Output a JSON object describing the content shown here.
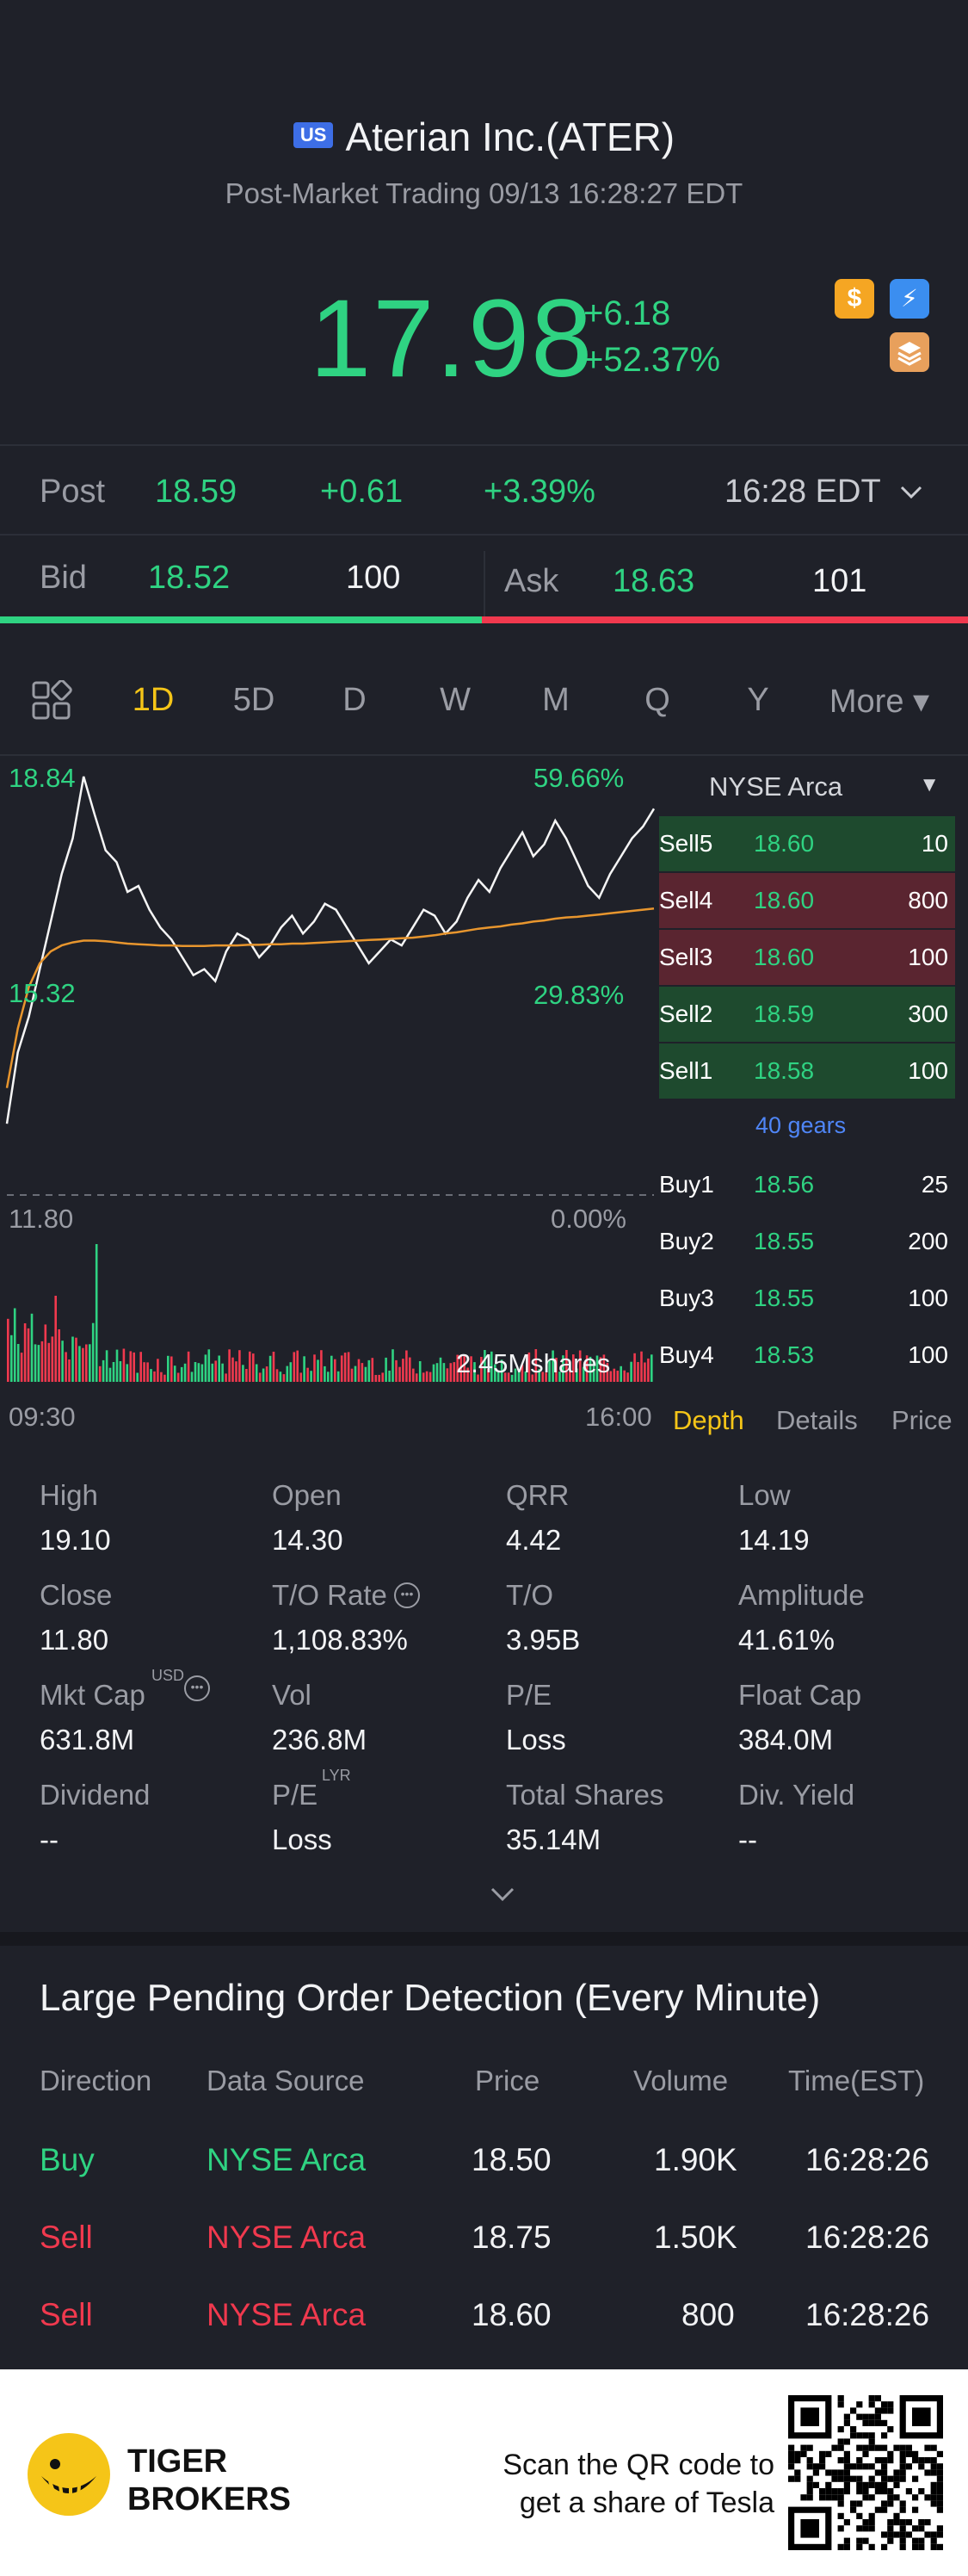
{
  "header": {
    "market_badge": "US",
    "title": "Aterian Inc.(ATER)",
    "subtitle": "Post-Market Trading 09/13 16:28:27 EDT",
    "price": "17.98",
    "change": "+6.18",
    "change_pct": "+52.37%",
    "icons": [
      "dollar-icon",
      "lightning-icon",
      "layers-icon"
    ]
  },
  "post": {
    "label": "Post",
    "price": "18.59",
    "change": "+0.61",
    "change_pct": "+3.39%",
    "time": "16:28 EDT"
  },
  "bidask": {
    "bid_label": "Bid",
    "bid_price": "18.52",
    "bid_qty": "100",
    "ask_label": "Ask",
    "ask_price": "18.63",
    "ask_qty": "101"
  },
  "tabs": [
    "1D",
    "5D",
    "D",
    "W",
    "M",
    "Q",
    "Y",
    "More ▾"
  ],
  "active_tab": "1D",
  "chart": {
    "high": "18.84",
    "high_pct": "59.66%",
    "mid": "15.32",
    "mid_pct": "29.83%",
    "low": "11.80",
    "low_pct": "0.00%",
    "volume": "2.45Mshares",
    "time_start": "09:30",
    "time_end": "16:00"
  },
  "orderbook": {
    "exchange": "NYSE Arca",
    "sells": [
      {
        "name": "Sell5",
        "price": "18.60",
        "qty": "10"
      },
      {
        "name": "Sell4",
        "price": "18.60",
        "qty": "800"
      },
      {
        "name": "Sell3",
        "price": "18.60",
        "qty": "100"
      },
      {
        "name": "Sell2",
        "price": "18.59",
        "qty": "300"
      },
      {
        "name": "Sell1",
        "price": "18.58",
        "qty": "100"
      }
    ],
    "gears": "40 gears",
    "buys": [
      {
        "name": "Buy1",
        "price": "18.56",
        "qty": "25"
      },
      {
        "name": "Buy2",
        "price": "18.55",
        "qty": "200"
      },
      {
        "name": "Buy3",
        "price": "18.55",
        "qty": "100"
      },
      {
        "name": "Buy4",
        "price": "18.53",
        "qty": "100"
      }
    ],
    "tabs": [
      "Depth",
      "Details",
      "Price"
    ]
  },
  "stats": [
    {
      "label": "High",
      "value": "19.10"
    },
    {
      "label": "Open",
      "value": "14.30"
    },
    {
      "label": "QRR",
      "value": "4.42"
    },
    {
      "label": "Low",
      "value": "14.19"
    },
    {
      "label": "Close",
      "value": "11.80"
    },
    {
      "label": "T/O Rate",
      "value": "1,108.83%"
    },
    {
      "label": "T/O",
      "value": "3.95B"
    },
    {
      "label": "Amplitude",
      "value": "41.61%"
    },
    {
      "label": "Mkt Cap",
      "value": "631.8M",
      "sup": "USD"
    },
    {
      "label": "Vol",
      "value": "236.8M"
    },
    {
      "label": "P/E",
      "value": "Loss"
    },
    {
      "label": "Float Cap",
      "value": "384.0M"
    },
    {
      "label": "Dividend",
      "value": "--"
    },
    {
      "label": "P/E",
      "value": "Loss",
      "sup": "LYR"
    },
    {
      "label": "Total Shares",
      "value": "35.14M"
    },
    {
      "label": "Div. Yield",
      "value": "--"
    }
  ],
  "large_pending": {
    "title": "Large Pending Order Detection (Every Minute)",
    "headers": [
      "Direction",
      "Data Source",
      "Price",
      "Volume",
      "Time(EST)"
    ],
    "rows": [
      {
        "direction": "Buy",
        "source": "NYSE Arca",
        "price": "18.50",
        "volume": "1.90K",
        "time": "16:28:26"
      },
      {
        "direction": "Sell",
        "source": "NYSE Arca",
        "price": "18.75",
        "volume": "1.50K",
        "time": "16:28:26"
      },
      {
        "direction": "Sell",
        "source": "NYSE Arca",
        "price": "18.60",
        "volume": "800",
        "time": "16:28:26"
      }
    ]
  },
  "footer": {
    "brand_line1": "TIGER",
    "brand_line2": "BROKERS",
    "promo_line1": "Scan the QR code to",
    "promo_line2": "get a share of Tesla"
  },
  "colors": {
    "background": "#1f2129",
    "up": "#2fd382",
    "down": "#f0394e",
    "accent": "#f5c518",
    "link": "#4f86f7"
  },
  "chart_data": {
    "type": "line",
    "series": [
      {
        "name": "",
        "values": [
          13.0,
          14.2,
          14.8,
          15.6,
          16.4,
          17.2,
          17.8,
          18.84,
          18.2,
          17.6,
          17.4,
          16.9,
          17.0,
          16.6,
          16.3,
          16.1,
          15.8,
          15.5,
          15.6,
          15.4,
          15.9,
          16.2,
          16.1,
          15.8,
          16.0,
          16.3,
          16.5,
          16.2,
          16.4,
          16.7,
          16.6,
          16.3,
          16.0,
          15.7,
          15.9,
          16.1,
          16.0,
          16.3,
          16.6,
          16.5,
          16.2,
          16.4,
          16.8,
          17.1,
          16.9,
          17.3,
          17.6,
          17.9,
          17.5,
          17.7,
          18.1,
          17.8,
          17.4,
          17.0,
          16.8,
          17.2,
          17.5,
          17.8,
          18.0,
          18.3
        ]
      },
      {
        "name": "",
        "values": [
          13.6,
          14.6,
          15.3,
          15.7,
          15.9,
          16.0,
          16.05,
          16.08,
          16.08,
          16.07,
          16.05,
          16.03,
          16.02,
          16.01,
          16.0,
          16.0,
          15.99,
          15.99,
          15.99,
          16.0,
          16.0,
          16.0,
          16.01,
          16.01,
          16.02,
          16.02,
          16.03,
          16.03,
          16.04,
          16.05,
          16.06,
          16.07,
          16.08,
          16.09,
          16.1,
          16.11,
          16.12,
          16.13,
          16.15,
          16.17,
          16.2,
          16.22,
          16.25,
          16.28,
          16.3,
          16.32,
          16.35,
          16.37,
          16.4,
          16.42,
          16.45,
          16.47,
          16.48,
          16.5,
          16.52,
          16.54,
          16.56,
          16.58,
          16.6,
          16.62
        ]
      }
    ],
    "ylim": [
      11.8,
      18.84
    ],
    "x_range": [
      "09:30",
      "16:00"
    ]
  }
}
